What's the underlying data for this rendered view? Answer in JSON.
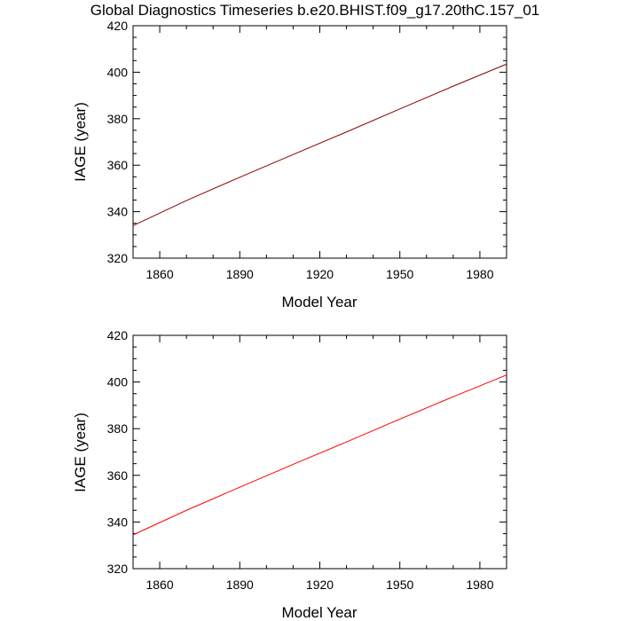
{
  "title": "Global Diagnostics Timeseries b.e20.BHIST.f09_g17.20thC.157_01",
  "chart_data": [
    {
      "type": "line",
      "xlabel": "Model Year",
      "ylabel": "IAGE (year)",
      "xlim": [
        1850,
        1990
      ],
      "ylim": [
        320,
        420
      ],
      "xticks": [
        1860,
        1890,
        1920,
        1950,
        1980
      ],
      "yticks": [
        320,
        340,
        360,
        380,
        400,
        420
      ],
      "series": [
        {
          "x": [
            1850,
            1870,
            1890,
            1910,
            1930,
            1950,
            1970,
            1990
          ],
          "y": [
            334,
            344.8,
            354.8,
            364.6,
            374.3,
            384.2,
            394.0,
            403.5
          ],
          "color": "#8b0000"
        }
      ]
    },
    {
      "type": "line",
      "xlabel": "Model Year",
      "ylabel": "IAGE (year)",
      "xlim": [
        1850,
        1990
      ],
      "ylim": [
        320,
        420
      ],
      "xticks": [
        1860,
        1890,
        1920,
        1950,
        1980
      ],
      "yticks": [
        320,
        340,
        360,
        380,
        400,
        420
      ],
      "series": [
        {
          "x": [
            1850,
            1870,
            1890,
            1910,
            1930,
            1950,
            1970,
            1990
          ],
          "y": [
            334.5,
            345.0,
            354.9,
            364.7,
            374.3,
            384.1,
            393.7,
            403.0
          ],
          "color": "#ff0000"
        }
      ]
    }
  ]
}
